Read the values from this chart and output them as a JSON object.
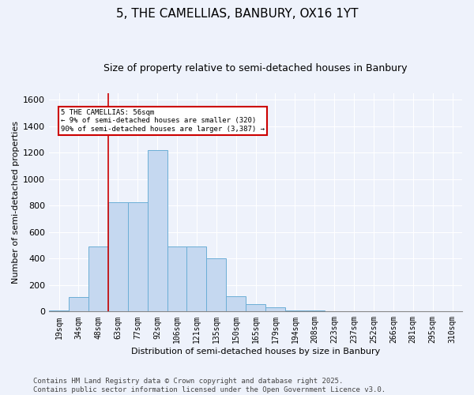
{
  "title": "5, THE CAMELLIAS, BANBURY, OX16 1YT",
  "subtitle": "Size of property relative to semi-detached houses in Banbury",
  "xlabel": "Distribution of semi-detached houses by size in Banbury",
  "ylabel": "Number of semi-detached properties",
  "bins": [
    "19sqm",
    "34sqm",
    "48sqm",
    "63sqm",
    "77sqm",
    "92sqm",
    "106sqm",
    "121sqm",
    "135sqm",
    "150sqm",
    "165sqm",
    "179sqm",
    "194sqm",
    "208sqm",
    "223sqm",
    "237sqm",
    "252sqm",
    "266sqm",
    "281sqm",
    "295sqm",
    "310sqm"
  ],
  "values": [
    5,
    110,
    490,
    825,
    825,
    1220,
    490,
    490,
    400,
    115,
    55,
    30,
    10,
    5,
    0,
    0,
    0,
    0,
    0,
    0,
    0
  ],
  "bar_color": "#c5d8f0",
  "bar_edge_color": "#6baed6",
  "marker_bin_index": 2,
  "marker_color": "#cc0000",
  "annotation_text": "5 THE CAMELLIAS: 56sqm\n← 9% of semi-detached houses are smaller (320)\n90% of semi-detached houses are larger (3,387) →",
  "annotation_box_color": "#cc0000",
  "ylim": [
    0,
    1650
  ],
  "yticks": [
    0,
    200,
    400,
    600,
    800,
    1000,
    1200,
    1400,
    1600
  ],
  "background_color": "#eef2fb",
  "grid_color": "#ffffff",
  "footer_text": "Contains HM Land Registry data © Crown copyright and database right 2025.\nContains public sector information licensed under the Open Government Licence v3.0.",
  "title_fontsize": 11,
  "subtitle_fontsize": 9,
  "ylabel_fontsize": 8,
  "xlabel_fontsize": 8,
  "tick_fontsize": 7,
  "footer_fontsize": 6.5
}
